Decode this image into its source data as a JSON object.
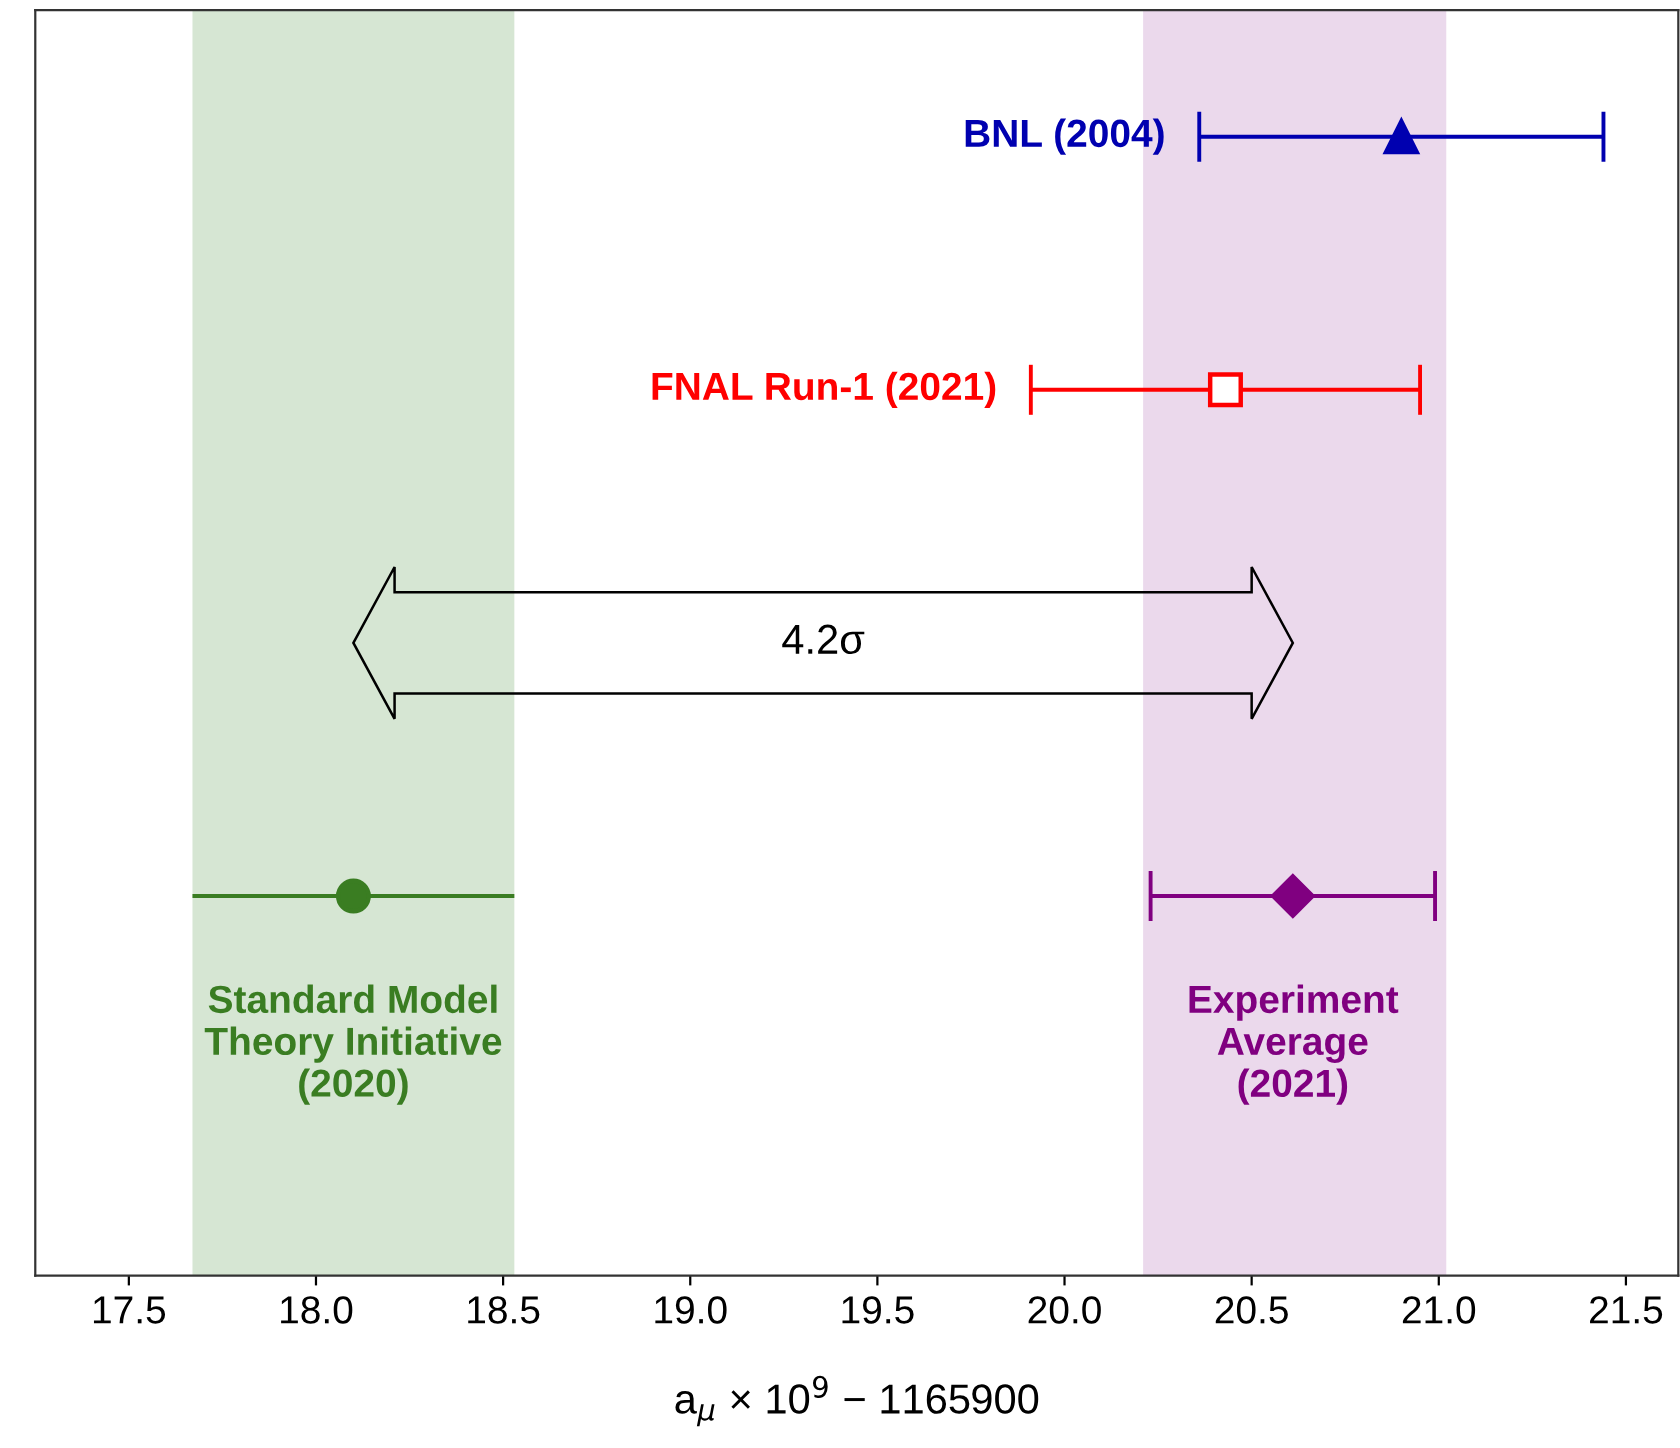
{
  "chart_data": {
    "type": "scatter",
    "orientation": "horizontal",
    "xlabel": "a$_{μ}$ × 10$^{9}$ − 1165900",
    "categories": [
      null,
      null,
      null,
      null,
      null
    ],
    "xlim": [
      17.25,
      21.64
    ],
    "xticks": [
      {
        "value": 17.5,
        "label": "17.5"
      },
      {
        "value": 18.0,
        "label": "18.0"
      },
      {
        "value": 18.5,
        "label": "18.5"
      },
      {
        "value": 19.0,
        "label": "19.0"
      },
      {
        "value": 19.5,
        "label": "19.5"
      },
      {
        "value": 20.0,
        "label": "20.0"
      },
      {
        "value": 20.5,
        "label": "20.5"
      },
      {
        "value": 21.0,
        "label": "21.0"
      },
      {
        "value": 21.5,
        "label": "21.5"
      }
    ],
    "tick_labels": "x",
    "grid": false,
    "legend": "top right",
    "series": [
      {
        "name": "BNL (2004)",
        "color": "#0000b0",
        "marker": "triangle",
        "values": [
          20.9,
          null,
          null,
          null,
          null
        ],
        "errors": [
          0.54,
          null,
          null,
          null,
          null
        ]
      },
      {
        "name": "FNAL Run-1 (2021)",
        "color": "#ff0000",
        "marker": "square",
        "values": [
          null,
          20.43,
          null,
          null,
          null
        ],
        "errors": [
          null,
          0.52,
          null,
          null,
          null
        ]
      },
      {
        "name": "Standard Model\nTheory Initiative\n(2020)",
        "color": "#3a7d22",
        "marker": "circle",
        "values": [
          null,
          null,
          null,
          18.1,
          null
        ],
        "errors": [
          null,
          null,
          null,
          0.43,
          null
        ]
      },
      {
        "name": "Experiment\nAverage\n(2021)",
        "color": "#800080",
        "marker": "diamond",
        "values": [
          null,
          null,
          null,
          20.61,
          null
        ],
        "errors": [
          null,
          null,
          null,
          0.38,
          null
        ]
      }
    ],
    "bands": [
      {
        "axis": "x",
        "from": 17.67,
        "to": 18.53,
        "color": "#d6e6d3"
      },
      {
        "axis": "x",
        "from": 20.21,
        "to": 21.02,
        "color": "#ebd9ec"
      }
    ],
    "annotations": [
      "4.2σ"
    ]
  }
}
